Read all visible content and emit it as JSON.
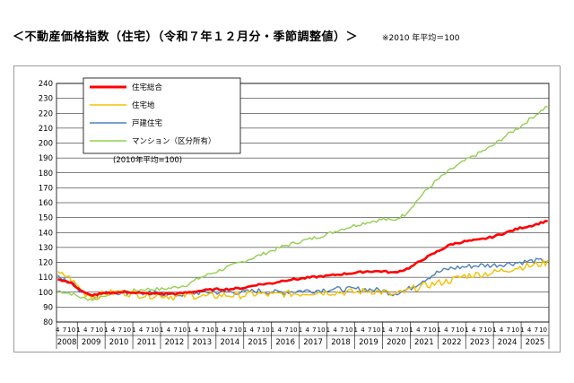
{
  "title": "＜不動産価格指数（住宅）（令和７年１２月分・季節調整値）＞",
  "note": "※2010 年平均＝100",
  "chart_data": {
    "type": "line",
    "base_note": "(2010年平均=100)",
    "ylim": [
      80,
      240
    ],
    "ytick_step": 10,
    "x_start": "2008-04",
    "x_end": "2025-12",
    "month_ticks": [
      "4",
      "7",
      "10",
      "1"
    ],
    "years": [
      "2008",
      "2009",
      "2010",
      "2011",
      "2012",
      "2013",
      "2014",
      "2015",
      "2016",
      "2017",
      "2018",
      "2019",
      "2020",
      "2021",
      "2022",
      "2023",
      "2024",
      "2025"
    ],
    "legend_position": "top-left",
    "series": [
      {
        "name": "住宅総合",
        "color": "#ff0000",
        "points": [
          [
            "2008-04",
            109
          ],
          [
            "2008-10",
            106
          ],
          [
            "2009-03",
            100
          ],
          [
            "2009-06",
            98
          ],
          [
            "2009-12",
            99
          ],
          [
            "2010-06",
            100
          ],
          [
            "2011-01",
            100
          ],
          [
            "2011-06",
            99
          ],
          [
            "2012-01",
            99
          ],
          [
            "2012-08",
            99
          ],
          [
            "2013-01",
            100
          ],
          [
            "2013-06",
            101
          ],
          [
            "2014-01",
            102
          ],
          [
            "2014-06",
            102
          ],
          [
            "2015-01",
            103
          ],
          [
            "2015-06",
            105
          ],
          [
            "2016-01",
            106
          ],
          [
            "2016-06",
            108
          ],
          [
            "2017-01",
            109
          ],
          [
            "2017-06",
            110
          ],
          [
            "2018-01",
            111
          ],
          [
            "2018-06",
            112
          ],
          [
            "2019-01",
            113
          ],
          [
            "2019-06",
            114
          ],
          [
            "2020-01",
            114
          ],
          [
            "2020-05",
            113
          ],
          [
            "2020-10",
            115
          ],
          [
            "2021-01",
            117
          ],
          [
            "2021-06",
            122
          ],
          [
            "2021-12",
            127
          ],
          [
            "2022-06",
            132
          ],
          [
            "2022-12",
            134
          ],
          [
            "2023-06",
            135
          ],
          [
            "2023-12",
            137
          ],
          [
            "2024-06",
            140
          ],
          [
            "2024-12",
            143
          ],
          [
            "2025-06",
            145
          ],
          [
            "2025-12",
            148
          ]
        ]
      },
      {
        "name": "住宅地",
        "color": "#f5c000",
        "points": [
          [
            "2008-04",
            112
          ],
          [
            "2008-08",
            111
          ],
          [
            "2008-12",
            105
          ],
          [
            "2009-04",
            99
          ],
          [
            "2009-08",
            97
          ],
          [
            "2009-12",
            99
          ],
          [
            "2010-06",
            100
          ],
          [
            "2011-01",
            99
          ],
          [
            "2011-06",
            98
          ],
          [
            "2012-01",
            98
          ],
          [
            "2012-06",
            97
          ],
          [
            "2013-01",
            98
          ],
          [
            "2013-09",
            97
          ],
          [
            "2014-04",
            98
          ],
          [
            "2015-01",
            98
          ],
          [
            "2015-06",
            99
          ],
          [
            "2016-01",
            98
          ],
          [
            "2016-06",
            99
          ],
          [
            "2017-01",
            99
          ],
          [
            "2017-06",
            100
          ],
          [
            "2018-01",
            100
          ],
          [
            "2018-06",
            100
          ],
          [
            "2019-01",
            100
          ],
          [
            "2019-06",
            101
          ],
          [
            "2020-01",
            100
          ],
          [
            "2020-05",
            98
          ],
          [
            "2020-10",
            100
          ],
          [
            "2021-01",
            102
          ],
          [
            "2021-06",
            104
          ],
          [
            "2021-12",
            106
          ],
          [
            "2022-06",
            108
          ],
          [
            "2022-12",
            111
          ],
          [
            "2023-06",
            112
          ],
          [
            "2023-12",
            113
          ],
          [
            "2024-06",
            115
          ],
          [
            "2024-12",
            117
          ],
          [
            "2025-06",
            118
          ],
          [
            "2025-12",
            120
          ]
        ]
      },
      {
        "name": "戸建住宅",
        "color": "#4f81bd",
        "points": [
          [
            "2008-04",
            110
          ],
          [
            "2008-10",
            106
          ],
          [
            "2009-03",
            100
          ],
          [
            "2009-08",
            98
          ],
          [
            "2009-12",
            99
          ],
          [
            "2010-06",
            100
          ],
          [
            "2011-01",
            100
          ],
          [
            "2011-06",
            99
          ],
          [
            "2012-01",
            99
          ],
          [
            "2012-06",
            98
          ],
          [
            "2013-01",
            99
          ],
          [
            "2013-06",
            100
          ],
          [
            "2014-01",
            100
          ],
          [
            "2014-06",
            100
          ],
          [
            "2015-01",
            100
          ],
          [
            "2015-06",
            101
          ],
          [
            "2016-01",
            100
          ],
          [
            "2016-06",
            100
          ],
          [
            "2017-01",
            101
          ],
          [
            "2017-06",
            101
          ],
          [
            "2018-01",
            102
          ],
          [
            "2018-06",
            102
          ],
          [
            "2019-01",
            102
          ],
          [
            "2019-06",
            102
          ],
          [
            "2020-01",
            101
          ],
          [
            "2020-05",
            99
          ],
          [
            "2020-10",
            101
          ],
          [
            "2021-01",
            103
          ],
          [
            "2021-06",
            108
          ],
          [
            "2021-12",
            113
          ],
          [
            "2022-06",
            116
          ],
          [
            "2022-12",
            117
          ],
          [
            "2023-06",
            118
          ],
          [
            "2023-12",
            118
          ],
          [
            "2024-06",
            119
          ],
          [
            "2024-12",
            120
          ],
          [
            "2025-06",
            121
          ],
          [
            "2025-12",
            121
          ]
        ]
      },
      {
        "name": "マンション（区分所有）",
        "color": "#92d050",
        "points": [
          [
            "2008-04",
            101
          ],
          [
            "2008-10",
            99
          ],
          [
            "2009-03",
            96
          ],
          [
            "2009-08",
            95
          ],
          [
            "2009-12",
            98
          ],
          [
            "2010-06",
            100
          ],
          [
            "2011-01",
            101
          ],
          [
            "2011-06",
            102
          ],
          [
            "2012-01",
            102
          ],
          [
            "2012-06",
            103
          ],
          [
            "2012-12",
            105
          ],
          [
            "2013-06",
            110
          ],
          [
            "2014-01",
            114
          ],
          [
            "2014-06",
            117
          ],
          [
            "2015-01",
            121
          ],
          [
            "2015-06",
            124
          ],
          [
            "2016-01",
            128
          ],
          [
            "2016-06",
            131
          ],
          [
            "2017-01",
            134
          ],
          [
            "2017-06",
            136
          ],
          [
            "2018-01",
            139
          ],
          [
            "2018-06",
            142
          ],
          [
            "2019-01",
            145
          ],
          [
            "2019-06",
            147
          ],
          [
            "2020-01",
            149
          ],
          [
            "2020-05",
            148
          ],
          [
            "2020-10",
            152
          ],
          [
            "2021-01",
            157
          ],
          [
            "2021-06",
            166
          ],
          [
            "2021-12",
            175
          ],
          [
            "2022-06",
            182
          ],
          [
            "2022-12",
            188
          ],
          [
            "2023-06",
            193
          ],
          [
            "2023-12",
            198
          ],
          [
            "2024-06",
            205
          ],
          [
            "2024-12",
            211
          ],
          [
            "2025-06",
            218
          ],
          [
            "2025-12",
            225
          ]
        ]
      }
    ]
  }
}
